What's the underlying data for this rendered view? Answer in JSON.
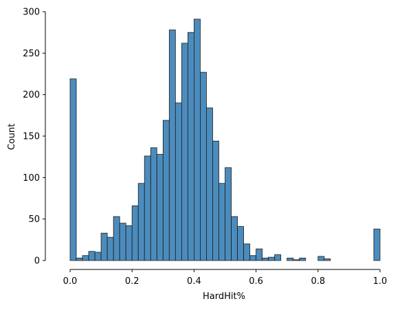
{
  "chart_data": {
    "type": "bar",
    "title": "",
    "xlabel": "HardHit%",
    "ylabel": "Count",
    "xlim": [
      0.0,
      1.0
    ],
    "ylim": [
      0,
      300
    ],
    "xticks": [
      "0.0",
      "0.2",
      "0.4",
      "0.6",
      "0.8",
      "1.0"
    ],
    "yticks": [
      "0",
      "50",
      "100",
      "150",
      "200",
      "250",
      "300"
    ],
    "grid": false,
    "legend": "none",
    "bin_width": 0.02,
    "bin_starts": [
      0.0,
      0.02,
      0.04,
      0.06,
      0.08,
      0.1,
      0.12,
      0.14,
      0.16,
      0.18,
      0.2,
      0.22,
      0.24,
      0.26,
      0.28,
      0.3,
      0.32,
      0.34,
      0.36,
      0.38,
      0.4,
      0.42,
      0.44,
      0.46,
      0.48,
      0.5,
      0.52,
      0.54,
      0.56,
      0.58,
      0.6,
      0.62,
      0.64,
      0.66,
      0.68,
      0.7,
      0.72,
      0.74,
      0.76,
      0.78,
      0.8,
      0.82,
      0.84,
      0.86,
      0.88,
      0.9,
      0.92,
      0.94,
      0.96,
      0.98
    ],
    "values": [
      219,
      3,
      6,
      11,
      10,
      33,
      28,
      53,
      45,
      42,
      66,
      93,
      126,
      136,
      128,
      169,
      278,
      190,
      262,
      275,
      291,
      227,
      184,
      144,
      93,
      112,
      53,
      41,
      20,
      6,
      14,
      3,
      4,
      7,
      0,
      3,
      1,
      3,
      0,
      0,
      5,
      2,
      0,
      0,
      0,
      0,
      0,
      0,
      0,
      38
    ],
    "bar_color": "#4c8cbd",
    "edge_color": "#1a1a1a"
  }
}
